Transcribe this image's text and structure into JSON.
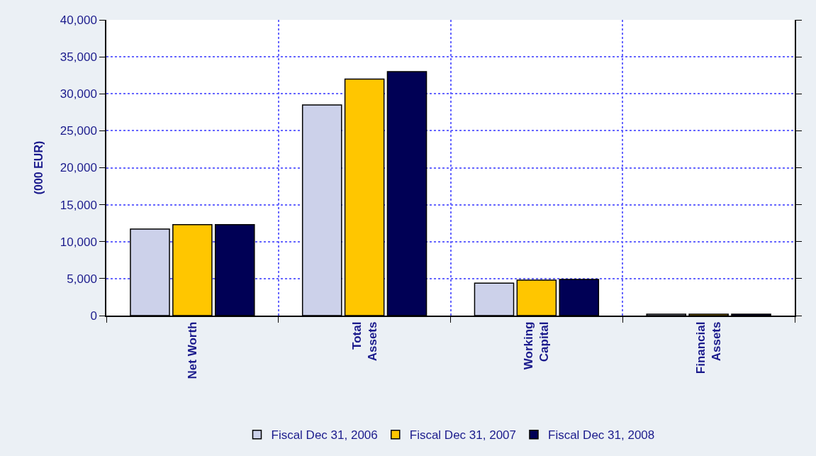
{
  "chart_data": {
    "type": "bar",
    "ylabel": "(000 EUR)",
    "categories": [
      "Net Worth",
      "Total\nAssets",
      "Working\nCapital",
      "Financial\nAssets"
    ],
    "series": [
      {
        "name": "Fiscal Dec 31, 2006",
        "color": "#ccd1ea",
        "values": [
          11700,
          28500,
          4400,
          200
        ]
      },
      {
        "name": "Fiscal Dec 31, 2007",
        "color": "#ffc600",
        "values": [
          12300,
          32000,
          4800,
          200
        ]
      },
      {
        "name": "Fiscal Dec 31, 2008",
        "color": "#000055",
        "values": [
          12300,
          33000,
          4900,
          200
        ]
      }
    ],
    "ylim": [
      0,
      40000
    ],
    "yticks": [
      {
        "value": 0,
        "label": "0"
      },
      {
        "value": 5000,
        "label": "5,000"
      },
      {
        "value": 10000,
        "label": "10,000"
      },
      {
        "value": 15000,
        "label": "15,000"
      },
      {
        "value": 20000,
        "label": "20,000"
      },
      {
        "value": 25000,
        "label": "25,000"
      },
      {
        "value": 30000,
        "label": "30,000"
      },
      {
        "value": 35000,
        "label": "35,000"
      },
      {
        "value": 40000,
        "label": "40,000"
      }
    ],
    "grid": true,
    "legend": "bottom"
  }
}
